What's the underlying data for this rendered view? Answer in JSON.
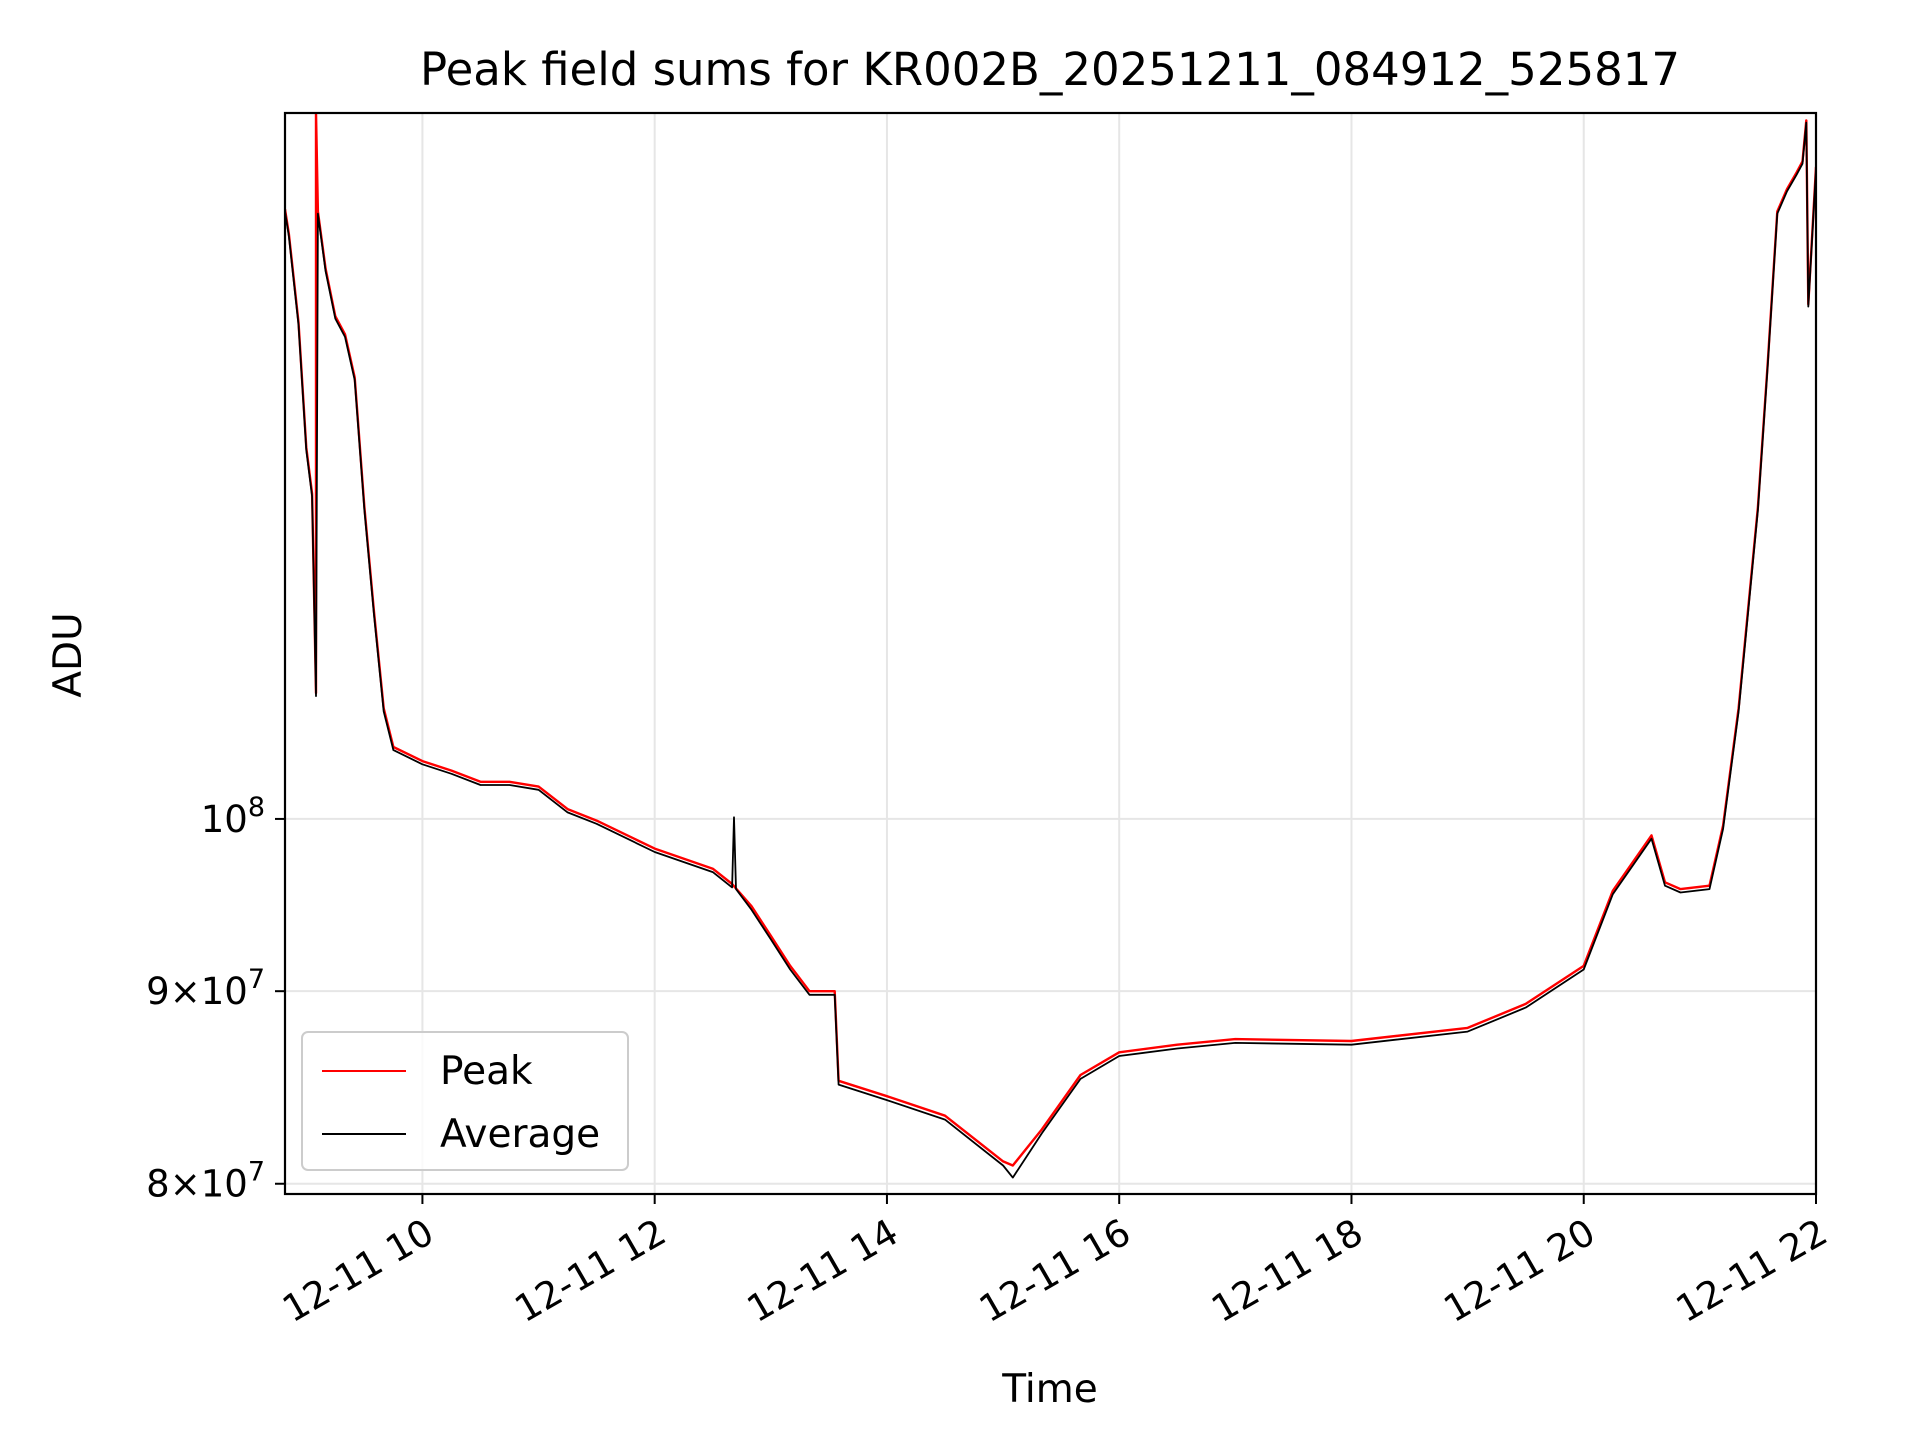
{
  "chart_data": {
    "type": "line",
    "title": "Peak field sums for KR002B_20251211_084912_525817",
    "xlabel": "Time",
    "ylabel": "ADU",
    "yscale": "log",
    "grid": true,
    "legend": "lower-left",
    "xlim": [
      "2025-12-11 08:49",
      "2025-12-11 22:00"
    ],
    "ylim": [
      79500000,
      154000000
    ],
    "x_ticks": [
      {
        "value": "2025-12-11 10:00",
        "label": "12-11 10"
      },
      {
        "value": "2025-12-11 12:00",
        "label": "12-11 12"
      },
      {
        "value": "2025-12-11 14:00",
        "label": "12-11 14"
      },
      {
        "value": "2025-12-11 16:00",
        "label": "12-11 16"
      },
      {
        "value": "2025-12-11 18:00",
        "label": "12-11 18"
      },
      {
        "value": "2025-12-11 20:00",
        "label": "12-11 20"
      },
      {
        "value": "2025-12-11 22:00",
        "label": "12-11 22"
      }
    ],
    "y_ticks": [
      {
        "value": 100000000,
        "mant": "",
        "base": "10",
        "exp": "8"
      },
      {
        "value": 90000000,
        "mant": "9",
        "base": "10",
        "exp": "7"
      },
      {
        "value": 80000000,
        "mant": "8",
        "base": "10",
        "exp": "7"
      }
    ],
    "series": [
      {
        "name": "Peak",
        "color": "#ff0000",
        "x": [
          "2025-12-11 08:49",
          "2025-12-11 08:51",
          "2025-12-11 08:56",
          "2025-12-11 09:00",
          "2025-12-11 09:03",
          "2025-12-11 09:05",
          "2025-12-11 09:05",
          "2025-12-11 09:06",
          "2025-12-11 09:10",
          "2025-12-11 09:15",
          "2025-12-11 09:20",
          "2025-12-11 09:25",
          "2025-12-11 09:30",
          "2025-12-11 09:35",
          "2025-12-11 09:40",
          "2025-12-11 09:45",
          "2025-12-11 10:00",
          "2025-12-11 10:15",
          "2025-12-11 10:30",
          "2025-12-11 10:45",
          "2025-12-11 11:00",
          "2025-12-11 11:15",
          "2025-12-11 11:30",
          "2025-12-11 12:00",
          "2025-12-11 12:30",
          "2025-12-11 12:40",
          "2025-12-11 12:50",
          "2025-12-11 13:00",
          "2025-12-11 13:10",
          "2025-12-11 13:20",
          "2025-12-11 13:33",
          "2025-12-11 13:35",
          "2025-12-11 14:00",
          "2025-12-11 14:30",
          "2025-12-11 15:00",
          "2025-12-11 15:05",
          "2025-12-11 15:20",
          "2025-12-11 15:40",
          "2025-12-11 16:00",
          "2025-12-11 16:30",
          "2025-12-11 17:00",
          "2025-12-11 18:00",
          "2025-12-11 19:00",
          "2025-12-11 19:30",
          "2025-12-11 20:00",
          "2025-12-11 20:15",
          "2025-12-11 20:35",
          "2025-12-11 20:42",
          "2025-12-11 20:50",
          "2025-12-11 21:05",
          "2025-12-11 21:12",
          "2025-12-11 21:20",
          "2025-12-11 21:30",
          "2025-12-11 21:35",
          "2025-12-11 21:40",
          "2025-12-11 21:45",
          "2025-12-11 21:50",
          "2025-12-11 21:53",
          "2025-12-11 21:55",
          "2025-12-11 21:56",
          "2025-12-11 22:00"
        ],
        "y": [
          145200000,
          143000000,
          135500000,
          125500000,
          122000000,
          108000000,
          154000000,
          145000000,
          140000000,
          136000000,
          134500000,
          131000000,
          121000000,
          113500000,
          107000000,
          104500000,
          103600000,
          103000000,
          102300000,
          102300000,
          102000000,
          100600000,
          99900000,
          98200000,
          97000000,
          96100000,
          94800000,
          93100000,
          91400000,
          90000000,
          90000000,
          85200000,
          84400000,
          83400000,
          81100000,
          80900000,
          82700000,
          85500000,
          86700000,
          87100000,
          87400000,
          87300000,
          88000000,
          89300000,
          91400000,
          95700000,
          99000000,
          96200000,
          95800000,
          96000000,
          99600000,
          107000000,
          121000000,
          132000000,
          145000000,
          147000000,
          148500000,
          149500000,
          153300000,
          137000000,
          149000000
        ]
      },
      {
        "name": "Average",
        "color": "#000000",
        "x": [
          "2025-12-11 08:49",
          "2025-12-11 08:51",
          "2025-12-11 08:56",
          "2025-12-11 09:00",
          "2025-12-11 09:03",
          "2025-12-11 09:05",
          "2025-12-11 09:06",
          "2025-12-11 09:10",
          "2025-12-11 09:15",
          "2025-12-11 09:20",
          "2025-12-11 09:25",
          "2025-12-11 09:30",
          "2025-12-11 09:35",
          "2025-12-11 09:40",
          "2025-12-11 09:45",
          "2025-12-11 10:00",
          "2025-12-11 10:15",
          "2025-12-11 10:30",
          "2025-12-11 10:45",
          "2025-12-11 11:00",
          "2025-12-11 11:15",
          "2025-12-11 11:30",
          "2025-12-11 12:00",
          "2025-12-11 12:30",
          "2025-12-11 12:40",
          "2025-12-11 12:41",
          "2025-12-11 12:42",
          "2025-12-11 12:50",
          "2025-12-11 13:00",
          "2025-12-11 13:10",
          "2025-12-11 13:20",
          "2025-12-11 13:33",
          "2025-12-11 13:35",
          "2025-12-11 14:00",
          "2025-12-11 14:30",
          "2025-12-11 15:00",
          "2025-12-11 15:05",
          "2025-12-11 15:20",
          "2025-12-11 15:40",
          "2025-12-11 16:00",
          "2025-12-11 16:30",
          "2025-12-11 17:00",
          "2025-12-11 18:00",
          "2025-12-11 19:00",
          "2025-12-11 19:30",
          "2025-12-11 20:00",
          "2025-12-11 20:15",
          "2025-12-11 20:35",
          "2025-12-11 20:42",
          "2025-12-11 20:50",
          "2025-12-11 21:05",
          "2025-12-11 21:12",
          "2025-12-11 21:20",
          "2025-12-11 21:30",
          "2025-12-11 21:35",
          "2025-12-11 21:40",
          "2025-12-11 21:45",
          "2025-12-11 21:50",
          "2025-12-11 21:53",
          "2025-12-11 21:55",
          "2025-12-11 21:56",
          "2025-12-11 22:00"
        ],
        "y": [
          145000000,
          142800000,
          135300000,
          125300000,
          121800000,
          107800000,
          144800000,
          139800000,
          135800000,
          134300000,
          130800000,
          120800000,
          113300000,
          106800000,
          104300000,
          103400000,
          102800000,
          102100000,
          102100000,
          101800000,
          100400000,
          99700000,
          98000000,
          96800000,
          95900000,
          100100000,
          95800000,
          94600000,
          92900000,
          91200000,
          89800000,
          89800000,
          85000000,
          84200000,
          83200000,
          80900000,
          80300000,
          82500000,
          85300000,
          86500000,
          86900000,
          87200000,
          87100000,
          87800000,
          89100000,
          91200000,
          95500000,
          98800000,
          96000000,
          95600000,
          95800000,
          99400000,
          106800000,
          120800000,
          131800000,
          144800000,
          146800000,
          148300000,
          149300000,
          153100000,
          136800000,
          148800000
        ]
      }
    ]
  }
}
